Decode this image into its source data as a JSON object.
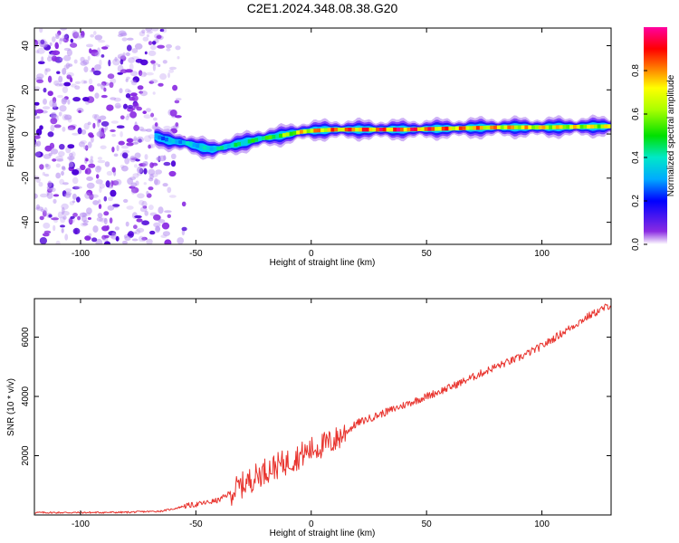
{
  "figure": {
    "title": "C2E1.2024.348.08.38.G20"
  },
  "chart_data": [
    {
      "type": "heatmap",
      "xlabel": "Height of straight line (km)",
      "ylabel": "Frequency (Hz)",
      "xlim": [
        -120,
        130
      ],
      "ylim": [
        -50,
        48
      ],
      "xticks": [
        -100,
        -50,
        0,
        50,
        100
      ],
      "yticks": [
        -40,
        -20,
        0,
        20,
        40
      ],
      "colorbar": {
        "label": "Normalized spectral amplitude",
        "range": [
          0,
          1
        ],
        "ticks": [
          0.0,
          0.2,
          0.4,
          0.6,
          0.8
        ]
      },
      "ridge": {
        "x": [
          -68,
          -62,
          -55,
          -48,
          -43,
          -38,
          -30,
          -22,
          -15,
          -10,
          -5,
          0,
          10,
          20,
          40,
          60,
          80,
          100,
          130
        ],
        "frequency": [
          -1,
          -3,
          -4,
          -6,
          -7,
          -6,
          -4,
          -2,
          -1,
          0,
          1,
          1.5,
          2,
          2,
          2,
          2.5,
          3,
          3,
          3.5
        ],
        "amplitude": [
          0.3,
          0.35,
          0.4,
          0.4,
          0.45,
          0.45,
          0.5,
          0.55,
          0.6,
          0.7,
          0.8,
          0.85,
          0.9,
          0.95,
          1.0,
          0.9,
          0.85,
          0.8,
          0.75
        ]
      },
      "noise_region": {
        "x_range": [
          -120,
          -55
        ],
        "frequency_range": [
          -50,
          48
        ],
        "amplitude": 0.15
      }
    },
    {
      "type": "line",
      "xlabel": "Height of straight line (km)",
      "ylabel": "SNR (10 * v/v)",
      "xlim": [
        -120,
        130
      ],
      "ylim": [
        0,
        7300
      ],
      "xticks": [
        -100,
        -50,
        0,
        50,
        100
      ],
      "yticks": [
        2000,
        4000,
        6000
      ],
      "series": [
        {
          "color": "#e8332d",
          "x": [
            -120,
            -100,
            -80,
            -65,
            -60,
            -55,
            -50,
            -45,
            -40,
            -35,
            -30,
            -25,
            -20,
            -15,
            -10,
            -5,
            0,
            5,
            10,
            15,
            20,
            25,
            30,
            40,
            50,
            60,
            70,
            80,
            90,
            100,
            110,
            120,
            130
          ],
          "y": [
            80,
            80,
            90,
            130,
            200,
            300,
            350,
            420,
            500,
            750,
            1000,
            1250,
            1500,
            1650,
            1800,
            2000,
            2200,
            2350,
            2500,
            2800,
            3100,
            3250,
            3400,
            3700,
            4000,
            4300,
            4650,
            5000,
            5300,
            5700,
            6200,
            6700,
            7100
          ]
        }
      ]
    }
  ]
}
